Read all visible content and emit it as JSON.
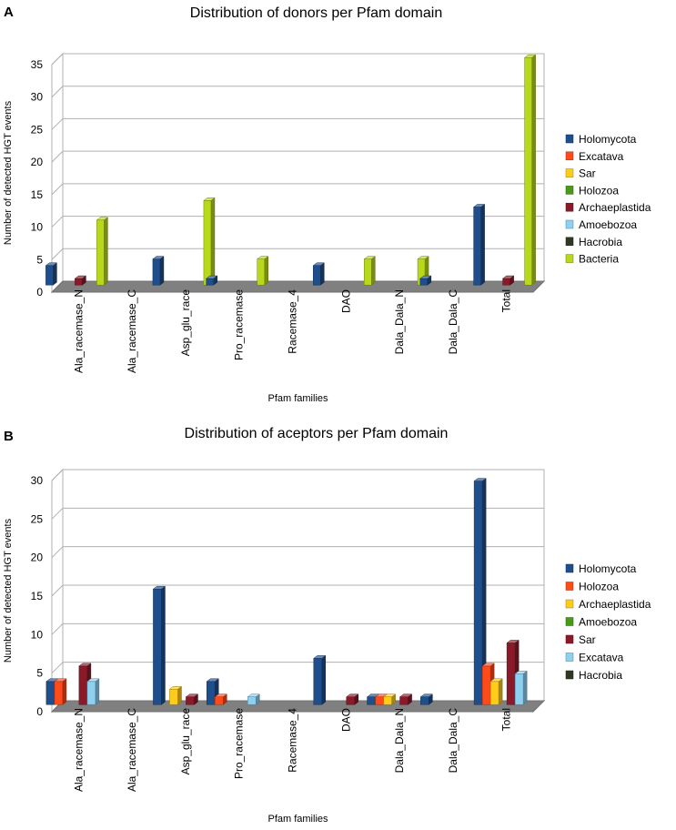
{
  "chart_data": [
    {
      "type": "bar",
      "panel": "A",
      "title": "Distribution of donors per Pfam domain",
      "xlabel": "Pfam families",
      "ylabel": "Number of detected HGT events",
      "ylim": [
        0,
        35
      ],
      "yticks": [
        0,
        5,
        10,
        15,
        20,
        25,
        30,
        35
      ],
      "categories": [
        "Ala_racemase_N",
        "Ala_racemase_C",
        "Asp_glu_race",
        "Pro_racemase",
        "Racemase_4",
        "DAO",
        "Dala_Dala_N",
        "Dala_Dala_C",
        "Total"
      ],
      "series": [
        {
          "name": "Holomycota",
          "color": "#1F4E8C",
          "values": [
            3,
            0,
            4,
            1,
            0,
            3,
            0,
            1,
            12
          ]
        },
        {
          "name": "Excatava",
          "color": "#FF4A1A",
          "values": [
            0,
            0,
            0,
            0,
            0,
            0,
            0,
            0,
            0
          ]
        },
        {
          "name": "Sar",
          "color": "#FFCC1A",
          "values": [
            0,
            0,
            0,
            0,
            0,
            0,
            0,
            0,
            0
          ]
        },
        {
          "name": "Holozoa",
          "color": "#4A9A1A",
          "values": [
            0,
            0,
            0,
            0,
            0,
            0,
            0,
            0,
            0
          ]
        },
        {
          "name": "Archaeplastida",
          "color": "#8A1A2A",
          "values": [
            1,
            0,
            0,
            0,
            0,
            0,
            0,
            0,
            1
          ]
        },
        {
          "name": "Amoebozoa",
          "color": "#8ED0F0",
          "values": [
            0,
            0,
            0,
            0,
            0,
            0,
            0,
            0,
            0
          ]
        },
        {
          "name": "Hacrobia",
          "color": "#2E3A1E",
          "values": [
            0,
            0,
            0,
            0,
            0,
            0,
            0,
            0,
            0
          ]
        },
        {
          "name": "Bacteria",
          "color": "#B8D81A",
          "values": [
            10,
            0,
            13,
            4,
            0,
            4,
            4,
            0,
            35
          ]
        }
      ]
    },
    {
      "type": "bar",
      "panel": "B",
      "title": "Distribution of aceptors per Pfam domain",
      "xlabel": "Pfam families",
      "ylabel": "Number of detected HGT events",
      "ylim": [
        0,
        30
      ],
      "yticks": [
        0,
        5,
        10,
        15,
        20,
        25,
        30
      ],
      "categories": [
        "Ala_racemase_N",
        "Ala_racemase_C",
        "Asp_glu_race",
        "Pro_racemase",
        "Racemase_4",
        "DAO",
        "Dala_Dala_N",
        "Dala_Dala_C",
        "Total"
      ],
      "series": [
        {
          "name": "Holomycota",
          "color": "#1F4E8C",
          "values": [
            3,
            0,
            15,
            3,
            0,
            6,
            1,
            1,
            29
          ]
        },
        {
          "name": "Holozoa",
          "color": "#FF4A1A",
          "values": [
            3,
            0,
            0,
            1,
            0,
            0,
            1,
            0,
            5
          ]
        },
        {
          "name": "Archaeplastida",
          "color": "#FFCC1A",
          "values": [
            0,
            0,
            2,
            0,
            0,
            0,
            1,
            0,
            3
          ]
        },
        {
          "name": "Amoebozoa",
          "color": "#4A9A1A",
          "values": [
            0,
            0,
            0,
            0,
            0,
            0,
            0,
            0,
            0
          ]
        },
        {
          "name": "Sar",
          "color": "#8A1A2A",
          "values": [
            5,
            0,
            1,
            0,
            0,
            1,
            1,
            0,
            8
          ]
        },
        {
          "name": "Excatava",
          "color": "#8ED0F0",
          "values": [
            3,
            0,
            0,
            1,
            0,
            0,
            0,
            0,
            4
          ]
        },
        {
          "name": "Hacrobia",
          "color": "#2E3A1E",
          "values": [
            0,
            0,
            0,
            0,
            0,
            0,
            0,
            0,
            0
          ]
        }
      ]
    }
  ]
}
